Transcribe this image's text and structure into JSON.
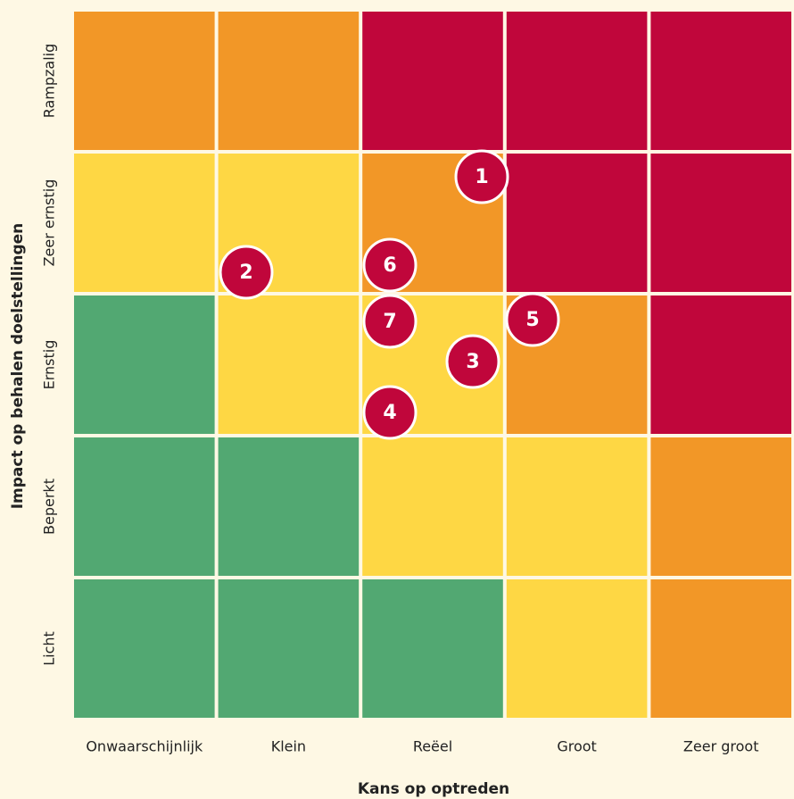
{
  "x_axis": {
    "title": "Kans op optreden",
    "labels": [
      "Onwaarschijnlijk",
      "Klein",
      "Reëel",
      "Groot",
      "Zeer groot"
    ]
  },
  "y_axis": {
    "title": "Impact op behalen doelstellingen",
    "labels": [
      "Rampzalig",
      "Zeer ernstig",
      "Ernstig",
      "Beperkt",
      "Licht"
    ]
  },
  "cells": [
    [
      "#f29727",
      "#f29727",
      "#c0063b",
      "#c0063b",
      "#c0063b"
    ],
    [
      "#fed744",
      "#fed744",
      "#f29727",
      "#c0063b",
      "#c0063b"
    ],
    [
      "#52a872",
      "#fed744",
      "#fed744",
      "#f29727",
      "#c0063b"
    ],
    [
      "#52a872",
      "#52a872",
      "#fed744",
      "#fed744",
      "#f29727"
    ],
    [
      "#52a872",
      "#52a872",
      "#52a872",
      "#fed744",
      "#f29727"
    ]
  ],
  "markers": {
    "color": "#c0063b",
    "labels": [
      "1",
      "2",
      "3",
      "4",
      "5",
      "6",
      "7"
    ]
  }
}
